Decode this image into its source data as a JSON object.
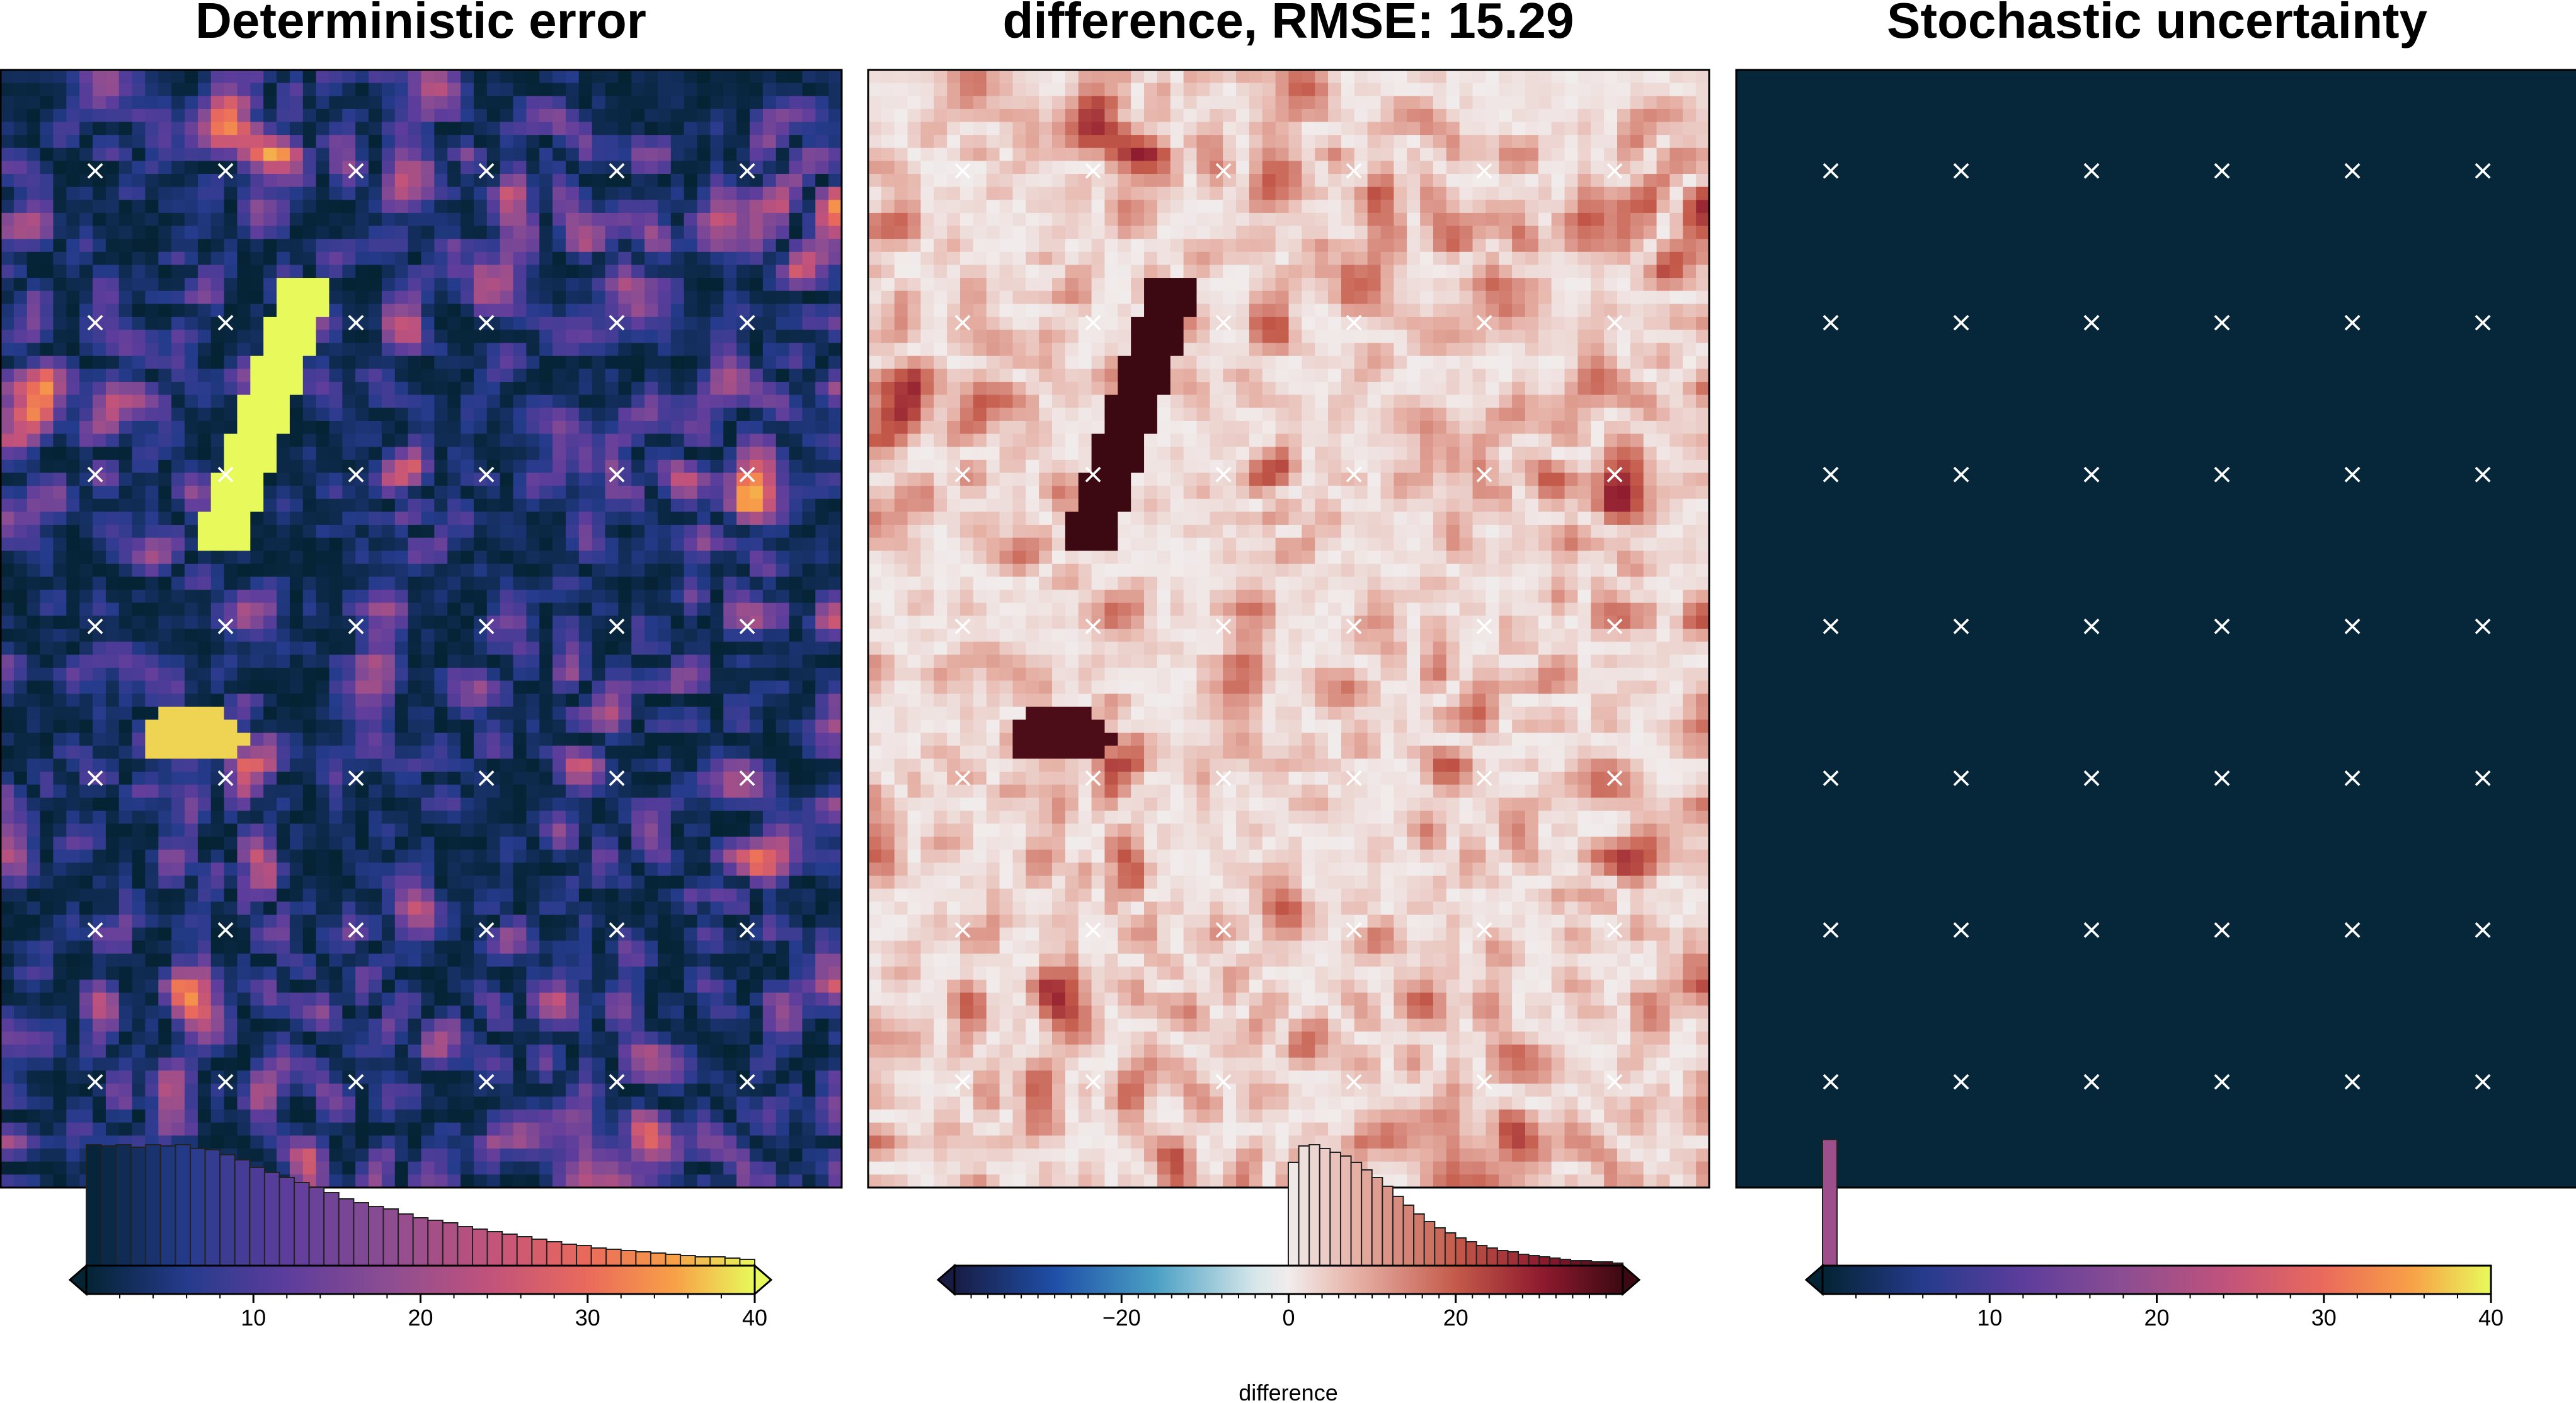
{
  "chart_data": [
    {
      "type": "heatmap",
      "title": "Deterministic error",
      "colormap": "thermal",
      "colorbar": {
        "range": [
          0,
          40
        ],
        "ticks": [
          10,
          20,
          30,
          40
        ],
        "tick_labels": [
          "10",
          "20",
          "30",
          "40"
        ],
        "label": "",
        "extend": "both",
        "histogram": [
          0.96,
          0.95,
          0.96,
          0.94,
          0.96,
          0.95,
          0.96,
          0.93,
          0.92,
          0.88,
          0.84,
          0.78,
          0.74,
          0.7,
          0.66,
          0.62,
          0.58,
          0.53,
          0.5,
          0.47,
          0.45,
          0.41,
          0.38,
          0.36,
          0.34,
          0.31,
          0.29,
          0.27,
          0.25,
          0.23,
          0.21,
          0.19,
          0.17,
          0.16,
          0.14,
          0.13,
          0.12,
          0.11,
          0.1,
          0.09,
          0.08,
          0.07,
          0.07,
          0.06,
          0.05
        ]
      },
      "markers": {
        "symbol": "×",
        "columns": 6,
        "rows": 7
      }
    },
    {
      "type": "heatmap",
      "title": "difference, RMSE: 15.29",
      "colormap": "balance",
      "colorbar": {
        "range": [
          -40,
          40
        ],
        "ticks": [
          -20,
          0,
          20
        ],
        "tick_labels": [
          "−20",
          "0",
          "20"
        ],
        "label": "difference",
        "extend": "both",
        "histogram_range": [
          0,
          40
        ],
        "histogram": [
          0.82,
          0.95,
          0.96,
          0.93,
          0.9,
          0.87,
          0.82,
          0.76,
          0.7,
          0.63,
          0.55,
          0.48,
          0.41,
          0.35,
          0.3,
          0.26,
          0.22,
          0.19,
          0.16,
          0.14,
          0.12,
          0.11,
          0.09,
          0.08,
          0.07,
          0.06,
          0.05,
          0.04,
          0.04,
          0.03,
          0.03,
          0.02
        ]
      },
      "markers": {
        "symbol": "×",
        "columns": 6,
        "rows": 7
      }
    },
    {
      "type": "heatmap",
      "title": "Stochastic uncertainty",
      "colormap": "thermal",
      "colorbar": {
        "range": [
          0,
          40
        ],
        "ticks": [
          10,
          20,
          30,
          40
        ],
        "tick_labels": [
          "10",
          "20",
          "30",
          "40"
        ],
        "label": "",
        "extend": "min",
        "histogram": [
          1.0
        ]
      },
      "markers": {
        "symbol": "×",
        "columns": 6,
        "rows": 7
      }
    }
  ]
}
